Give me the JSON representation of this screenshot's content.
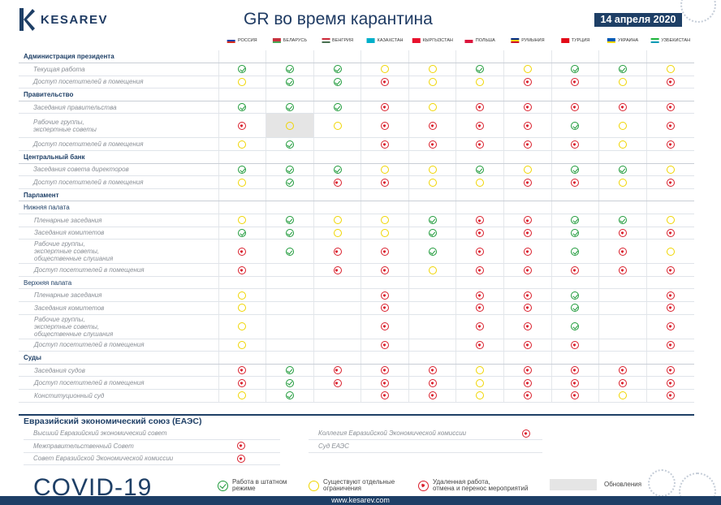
{
  "logo": {
    "text": "KESAREV"
  },
  "title": "GR во время карантина",
  "date": "14 апреля 2020",
  "countries": [
    {
      "name": "РОССИЯ",
      "flag": [
        "#ffffff",
        "#1c3fa8",
        "#d52b1e"
      ]
    },
    {
      "name": "БЕЛАРУСЬ",
      "flag": [
        "#c8313e",
        "#c8313e",
        "#4aa657"
      ]
    },
    {
      "name": "ВЕНГРИЯ",
      "flag": [
        "#ce2939",
        "#ffffff",
        "#477050"
      ]
    },
    {
      "name": "КАЗАХСТАН",
      "flag": [
        "#00afca",
        "#00afca",
        "#00afca"
      ]
    },
    {
      "name": "КЫРГЫЗСТАН",
      "flag": [
        "#e8112d",
        "#e8112d",
        "#e8112d"
      ]
    },
    {
      "name": "ПОЛЬША",
      "flag": [
        "#ffffff",
        "#dc143c",
        "#dc143c"
      ]
    },
    {
      "name": "РУМЫНИЯ",
      "flag": [
        "#002b7f",
        "#fcd116",
        "#ce1126"
      ]
    },
    {
      "name": "ТУРЦИЯ",
      "flag": [
        "#e30a17",
        "#e30a17",
        "#e30a17"
      ]
    },
    {
      "name": "УКРАИНА",
      "flag": [
        "#0057b7",
        "#0057b7",
        "#ffd700"
      ]
    },
    {
      "name": "УЗБЕКИСТАН",
      "flag": [
        "#1eb53a",
        "#ffffff",
        "#0099b5"
      ]
    }
  ],
  "rows": [
    {
      "type": "section",
      "label": "Администрация президента"
    },
    {
      "type": "item",
      "label": "Текущая работа",
      "v": [
        "ok",
        "ok",
        "ok",
        "lim",
        "lim",
        "ok",
        "lim",
        "ok",
        "ok",
        "lim"
      ]
    },
    {
      "type": "item",
      "label": "Доступ посетителей в помещения",
      "v": [
        "lim",
        "ok",
        "ok",
        "no",
        "lim",
        "lim",
        "no",
        "no",
        "lim",
        "no"
      ]
    },
    {
      "type": "section",
      "label": "Правительство"
    },
    {
      "type": "item",
      "label": "Заседания правительства",
      "v": [
        "ok",
        "ok",
        "ok",
        "no",
        "lim",
        "no",
        "no",
        "no",
        "no",
        "no"
      ]
    },
    {
      "type": "item",
      "tall": true,
      "label": "Рабочие группы,\nэкспертные советы",
      "v": [
        "no",
        "lim",
        "lim",
        "no",
        "no",
        "no",
        "no",
        "ok",
        "lim",
        "no"
      ],
      "grey": [
        1
      ]
    },
    {
      "type": "item",
      "label": "Доступ посетителей в помещения",
      "v": [
        "lim",
        "ok",
        "",
        "no",
        "no",
        "no",
        "no",
        "no",
        "lim",
        "no"
      ]
    },
    {
      "type": "section",
      "label": "Центральный банк"
    },
    {
      "type": "item",
      "label": "Заседания совета директоров",
      "v": [
        "ok",
        "ok",
        "ok",
        "lim",
        "lim",
        "ok",
        "lim",
        "ok",
        "ok",
        "lim"
      ]
    },
    {
      "type": "item",
      "label": "Доступ посетителей в помещения",
      "v": [
        "lim",
        "ok",
        "no",
        "no",
        "lim",
        "lim",
        "no",
        "no",
        "lim",
        "no"
      ]
    },
    {
      "type": "section",
      "label": "Парламент"
    },
    {
      "type": "sub",
      "label": "Нижняя палата"
    },
    {
      "type": "item",
      "deep": true,
      "label": "Пленарные заседания",
      "v": [
        "lim",
        "ok",
        "lim",
        "lim",
        "ok",
        "no",
        "no",
        "ok",
        "ok",
        "lim"
      ]
    },
    {
      "type": "item",
      "deep": true,
      "label": "Заседания комитетов",
      "v": [
        "ok",
        "ok",
        "lim",
        "lim",
        "ok",
        "no",
        "no",
        "ok",
        "no",
        "no"
      ]
    },
    {
      "type": "item",
      "deep": true,
      "tall": true,
      "label": "Рабочие группы,\nэкспертные советы,\nобщественные слушания",
      "v": [
        "no",
        "ok",
        "no",
        "no",
        "ok",
        "no",
        "no",
        "ok",
        "no",
        "lim"
      ]
    },
    {
      "type": "item",
      "deep": true,
      "label": "Доступ посетителей в помещения",
      "v": [
        "no",
        "",
        "no",
        "no",
        "lim",
        "no",
        "no",
        "no",
        "no",
        "no"
      ]
    },
    {
      "type": "sub",
      "label": "Верхняя палата"
    },
    {
      "type": "item",
      "deep": true,
      "label": "Пленарные заседания",
      "v": [
        "lim",
        "",
        "",
        "no",
        "",
        "no",
        "no",
        "ok",
        "",
        "no"
      ]
    },
    {
      "type": "item",
      "deep": true,
      "label": "Заседания комитетов",
      "v": [
        "lim",
        "",
        "",
        "no",
        "",
        "no",
        "no",
        "ok",
        "",
        "no"
      ]
    },
    {
      "type": "item",
      "deep": true,
      "tall": true,
      "label": "Рабочие группы,\nэкспертные советы,\nобщественные слушания",
      "v": [
        "lim",
        "",
        "",
        "no",
        "",
        "no",
        "no",
        "ok",
        "",
        "no"
      ]
    },
    {
      "type": "item",
      "deep": true,
      "label": "Доступ посетителей в помещения",
      "v": [
        "lim",
        "",
        "",
        "no",
        "",
        "no",
        "no",
        "no",
        "",
        "no"
      ]
    },
    {
      "type": "section",
      "label": "Суды"
    },
    {
      "type": "item",
      "deep": true,
      "label": "Заседания судов",
      "v": [
        "no",
        "ok",
        "no",
        "no",
        "no",
        "lim",
        "no",
        "no",
        "no",
        "no"
      ]
    },
    {
      "type": "item",
      "deep": true,
      "label": "Доступ посетителей в помещения",
      "v": [
        "no",
        "ok",
        "no",
        "no",
        "no",
        "lim",
        "no",
        "no",
        "no",
        "no"
      ]
    },
    {
      "type": "item",
      "deep": true,
      "label": "Конституционный суд",
      "v": [
        "lim",
        "ok",
        "",
        "no",
        "no",
        "lim",
        "no",
        "no",
        "lim",
        "no"
      ]
    }
  ],
  "eaes": {
    "title": "Евразийский экономический союз (ЕАЭС)",
    "left": [
      {
        "label": "Высший Евразийский экономический совет",
        "v": ""
      },
      {
        "label": "Межправительственный Совет",
        "v": "no"
      },
      {
        "label": "Совет Евразийской Экономической комиссии",
        "v": "no"
      }
    ],
    "right": [
      {
        "label": "Коллегия Евразийской Экономической комиссии",
        "v": "no"
      },
      {
        "label": "Суд ЕАЭС",
        "v": ""
      }
    ]
  },
  "covid": "COVID-19",
  "legend": {
    "ok": "Работа в штатном\nрежиме",
    "lim": "Существуют отдельные\nограничения",
    "no": "Удаленная работа,\nотмена и перенос мероприятий",
    "upd": "Обновления"
  },
  "footer": "www.kesarev.com"
}
